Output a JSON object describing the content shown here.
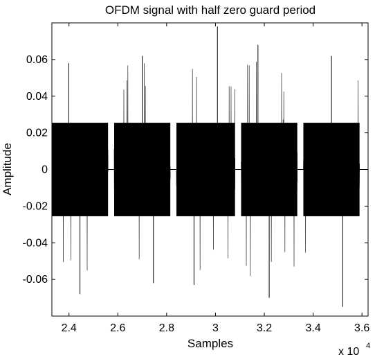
{
  "chart_data": {
    "type": "line",
    "title": "OFDM signal with half zero guard period",
    "xlabel": "Samples",
    "ylabel": "Amplitude",
    "x_exponent_label": "x 10",
    "x_exponent_power": "4",
    "xlim": [
      23300,
      36250
    ],
    "ylim": [
      -0.08,
      0.08
    ],
    "x_scale_factor": 10000,
    "xticks": [
      24000,
      26000,
      28000,
      30000,
      32000,
      34000,
      36000
    ],
    "xtick_labels": [
      "2.4",
      "2.6",
      "2.8",
      "3",
      "3.2",
      "3.4",
      "3.6"
    ],
    "yticks": [
      -0.06,
      -0.04,
      -0.02,
      0,
      0.02,
      0.04,
      0.06
    ],
    "ytick_labels": [
      "-0.06",
      "-0.04",
      "-0.02",
      "0",
      "0.02",
      "0.04",
      "0.06"
    ],
    "grid": false,
    "line_color": "#000000",
    "series": [
      {
        "symbol_bursts": [
          {
            "x_start": 23300,
            "x_end": 25600,
            "typical_amplitude": 0.03,
            "peak_max": 0.058,
            "peak_min": -0.068
          },
          {
            "x_start": 25850,
            "x_end": 28150,
            "typical_amplitude": 0.03,
            "peak_max": 0.062,
            "peak_min": -0.062
          },
          {
            "x_start": 28400,
            "x_end": 30800,
            "typical_amplitude": 0.03,
            "peak_max": 0.078,
            "peak_min": -0.063
          },
          {
            "x_start": 31050,
            "x_end": 33350,
            "typical_amplitude": 0.03,
            "peak_max": 0.068,
            "peak_min": -0.07
          },
          {
            "x_start": 33600,
            "x_end": 35900,
            "typical_amplitude": 0.03,
            "peak_max": 0.062,
            "peak_min": -0.075
          }
        ],
        "guard_level": 0
      }
    ]
  }
}
